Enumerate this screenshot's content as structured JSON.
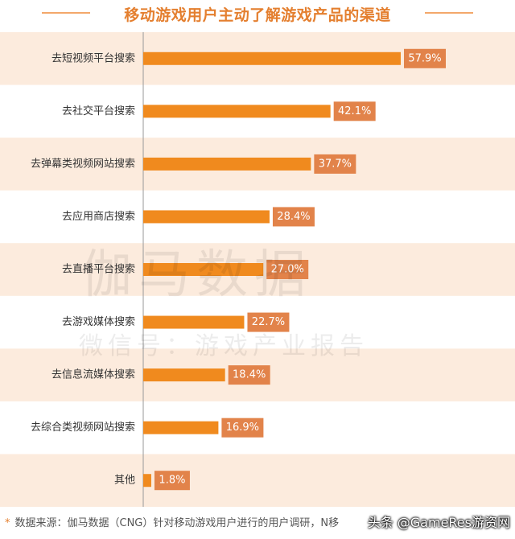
{
  "title": "移动游戏用户主动了解游戏产品的渠道",
  "colors": {
    "bar": "#F08A1E",
    "label_bg": "#E2834A",
    "stripe": "#FCEBDD",
    "title": "#E47F2F"
  },
  "watermark": {
    "line1": "伽马数据",
    "line2": "微信号：游戏产业报告"
  },
  "footer": {
    "source": "数据来源：伽马数据（CNG）针对移动游戏用户进行的用户调研，N移",
    "brand": "头条 @GameRes游资网"
  },
  "chart_data": {
    "type": "bar",
    "orientation": "horizontal",
    "categories": [
      "去短视频平台搜索",
      "去社交平台搜索",
      "去弹幕类视频网站搜索",
      "去应用商店搜索",
      "去直播平台搜索",
      "去游戏媒体搜索",
      "去信息流媒体搜索",
      "去综合类视频网站搜索",
      "其他"
    ],
    "values": [
      57.9,
      42.1,
      37.7,
      28.4,
      27.0,
      22.7,
      18.4,
      16.9,
      1.8
    ],
    "labels": [
      "57.9%",
      "42.1%",
      "37.7%",
      "28.4%",
      "27.0%",
      "22.7%",
      "18.4%",
      "16.9%",
      "1.8%"
    ],
    "unit": "%",
    "xlim": [
      0,
      57.9
    ]
  }
}
